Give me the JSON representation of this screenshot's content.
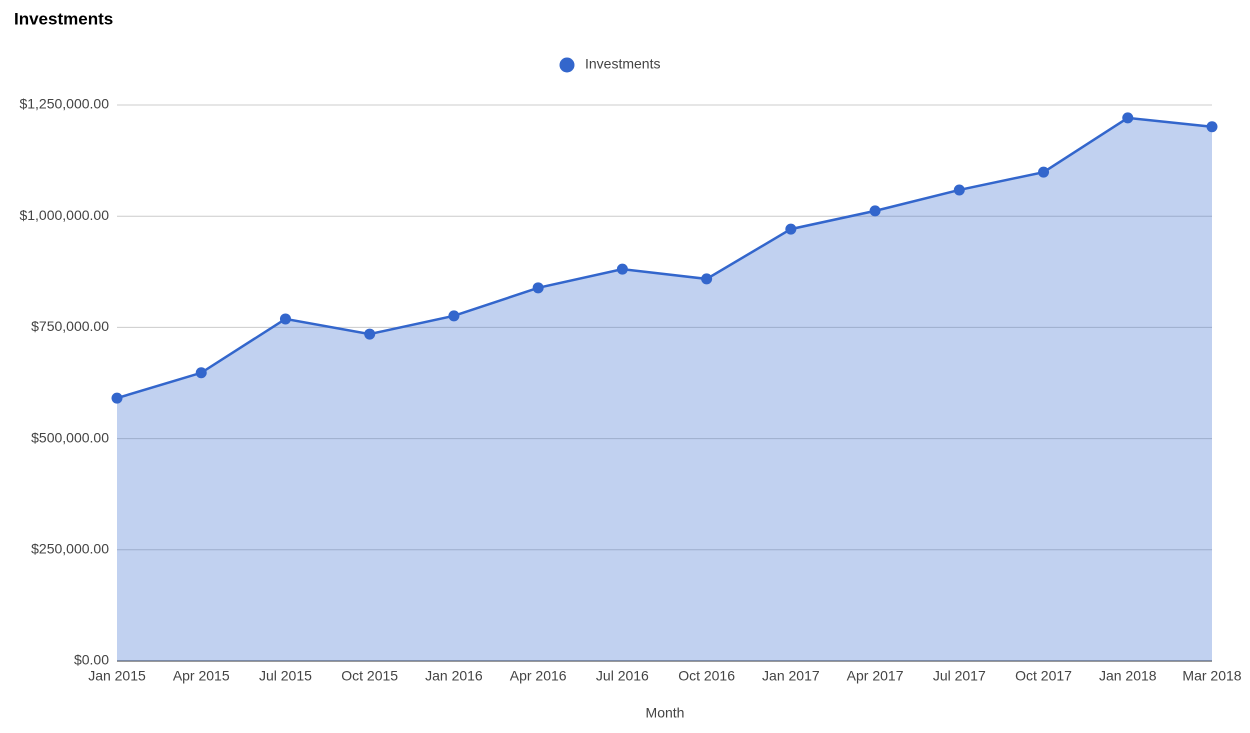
{
  "chart_data": {
    "type": "area",
    "title": "Investments",
    "x_label": "Month",
    "categories": [
      "Jan 2015",
      "Apr 2015",
      "Jul 2015",
      "Oct 2015",
      "Jan 2016",
      "Apr 2016",
      "Jul 2016",
      "Oct 2016",
      "Jan 2017",
      "Apr 2017",
      "Jul 2017",
      "Oct 2017",
      "Jan 2018",
      "Mar 2018"
    ],
    "series": [
      {
        "name": "Investments",
        "color": "#3366cc",
        "values": [
          591000,
          648000,
          769000,
          735000,
          776000,
          839000,
          881000,
          859000,
          971000,
          1012000,
          1059000,
          1099000,
          1221000,
          1201000
        ]
      }
    ],
    "ylim": [
      0,
      1250000
    ],
    "yticks": [
      {
        "value": 0,
        "label": "$0.00"
      },
      {
        "value": 250000,
        "label": "$250,000.00"
      },
      {
        "value": 500000,
        "label": "$500,000.00"
      },
      {
        "value": 750000,
        "label": "$750,000.00"
      },
      {
        "value": 1000000,
        "label": "$1,000,000.00"
      },
      {
        "value": 1250000,
        "label": "$1,250,000.00"
      }
    ],
    "grid": true,
    "legend": "top"
  }
}
